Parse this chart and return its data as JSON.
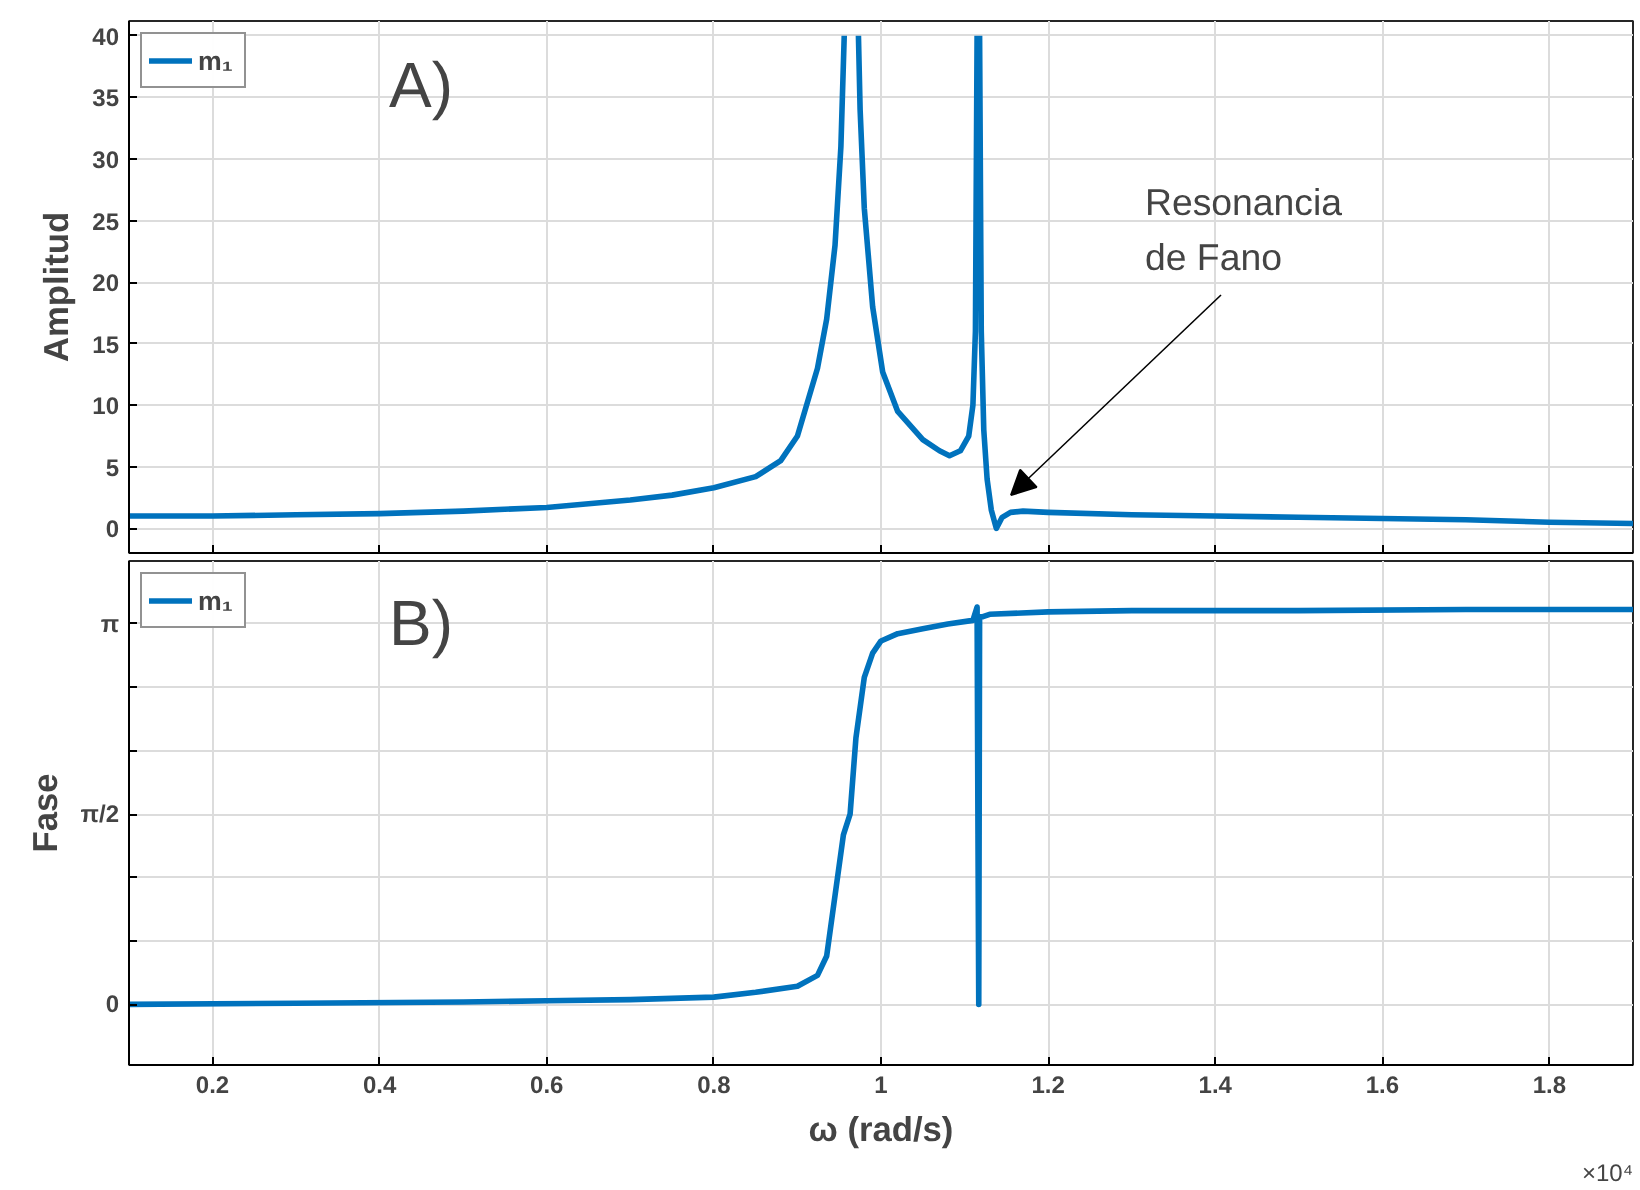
{
  "chart_data": [
    {
      "type": "line",
      "ylabel": "Amplitud",
      "xlim": [
        0.1,
        1.9
      ],
      "xticks": [
        0.2,
        0.4,
        0.6,
        0.8,
        1,
        1.2,
        1.4,
        1.6,
        1.8
      ],
      "ylim": [
        -2,
        41.2
      ],
      "yticks": [
        0,
        5,
        10,
        15,
        20,
        25,
        30,
        35,
        40
      ],
      "tick_labels": "y",
      "grid": true,
      "legend": "top left",
      "marker": "none",
      "line_style": "solid",
      "annotations": [
        "A)",
        "Resonancia\nde Fano"
      ],
      "series": [
        {
          "name": "m₁",
          "color": "#0072bd",
          "x": [
            0.1,
            0.2,
            0.3,
            0.4,
            0.5,
            0.6,
            0.7,
            0.75,
            0.8,
            0.85,
            0.88,
            0.9,
            0.924,
            0.935,
            0.945,
            0.952,
            0.956,
            0.957,
            0.973,
            0.975,
            0.98,
            0.99,
            1.002,
            1.02,
            1.05,
            1.07,
            1.082,
            1.095,
            1.105,
            1.11,
            1.113,
            1.115,
            1.116,
            1.118,
            1.12,
            1.123,
            1.127,
            1.132,
            1.138,
            1.145,
            1.155,
            1.17,
            1.2,
            1.3,
            1.4,
            1.5,
            1.6,
            1.7,
            1.8,
            1.9
          ],
          "values": [
            1.0,
            1.0,
            1.1,
            1.2,
            1.4,
            1.7,
            2.3,
            2.7,
            3.3,
            4.2,
            5.5,
            7.5,
            13,
            17,
            23,
            31,
            40,
            null,
            40,
            34,
            26,
            18,
            12.7,
            9.5,
            7.2,
            6.3,
            5.9,
            6.3,
            7.5,
            10,
            16,
            40,
            null,
            40,
            16,
            8,
            4,
            1.5,
            0,
            0.9,
            1.3,
            1.4,
            1.3,
            1.1,
            1.0,
            0.9,
            0.8,
            0.7,
            0.5,
            0.4
          ]
        }
      ]
    },
    {
      "type": "line",
      "ylabel": "Fase",
      "xlabel": "ω (rad/s)",
      "xlim": [
        0.1,
        1.9
      ],
      "xticks": [
        0.2,
        0.4,
        0.6,
        0.8,
        1,
        1.2,
        1.4,
        1.6,
        1.8
      ],
      "ylim": [
        -0.5,
        3.66
      ],
      "yticks": [
        {
          "value": 0,
          "label": "0"
        },
        {
          "value": 0.5236,
          "label": null
        },
        {
          "value": 1.0472,
          "label": null
        },
        {
          "value": 1.5708,
          "label": "π/2"
        },
        {
          "value": 2.0944,
          "label": null
        },
        {
          "value": 2.618,
          "label": null
        },
        {
          "value": 3.1416,
          "label": "π"
        }
      ],
      "grid": true,
      "legend": "top left",
      "marker": "none",
      "line_style": "solid",
      "annotations": [
        "B)",
        "×10⁴"
      ],
      "series": [
        {
          "name": "m₁",
          "color": "#0072bd",
          "x": [
            0.1,
            0.3,
            0.5,
            0.6,
            0.7,
            0.8,
            0.85,
            0.9,
            0.924,
            0.935,
            0.945,
            0.955,
            0.963,
            0.97,
            0.98,
            0.99,
            1.0,
            1.02,
            1.05,
            1.08,
            1.11,
            1.115,
            1.116,
            1.117,
            1.118,
            1.122,
            1.13,
            1.2,
            1.3,
            1.5,
            1.7,
            1.9
          ],
          "values": [
            0,
            0.01,
            0.02,
            0.03,
            0.04,
            0.06,
            0.1,
            0.15,
            0.24,
            0.4,
            0.9,
            1.4,
            1.57,
            2.2,
            2.7,
            2.9,
            3.0,
            3.06,
            3.1,
            3.14,
            3.17,
            3.28,
            1.5,
            0,
            3.2,
            3.2,
            3.22,
            3.24,
            3.25,
            3.25,
            3.26,
            3.26
          ]
        }
      ]
    }
  ]
}
